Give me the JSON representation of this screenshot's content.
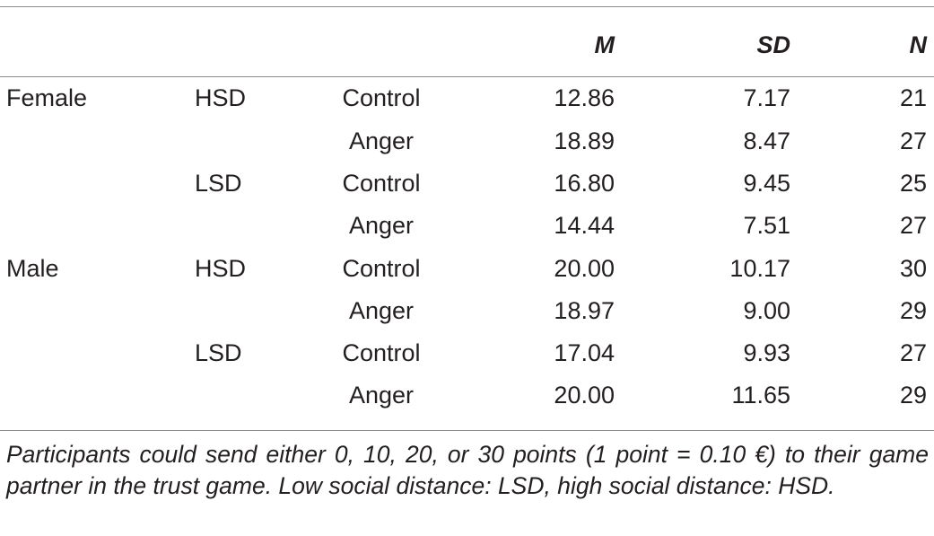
{
  "table": {
    "headers": {
      "sex": "",
      "distance": "",
      "condition": "",
      "m": "M",
      "sd": "SD",
      "n": "N"
    },
    "rows": [
      {
        "sex": "Female",
        "distance": "HSD",
        "condition": "Control",
        "m": "12.86",
        "sd": "7.17",
        "n": "21"
      },
      {
        "sex": "",
        "distance": "",
        "condition": "Anger",
        "m": "18.89",
        "sd": "8.47",
        "n": "27"
      },
      {
        "sex": "",
        "distance": "LSD",
        "condition": "Control",
        "m": "16.80",
        "sd": "9.45",
        "n": "25"
      },
      {
        "sex": "",
        "distance": "",
        "condition": "Anger",
        "m": "14.44",
        "sd": "7.51",
        "n": "27"
      },
      {
        "sex": "Male",
        "distance": "HSD",
        "condition": "Control",
        "m": "20.00",
        "sd": "10.17",
        "n": "30"
      },
      {
        "sex": "",
        "distance": "",
        "condition": "Anger",
        "m": "18.97",
        "sd": "9.00",
        "n": "29"
      },
      {
        "sex": "",
        "distance": "LSD",
        "condition": "Control",
        "m": "17.04",
        "sd": "9.93",
        "n": "27"
      },
      {
        "sex": "",
        "distance": "",
        "condition": "Anger",
        "m": "20.00",
        "sd": "11.65",
        "n": "29"
      }
    ]
  },
  "note": "Participants could send either 0, 10, 20, or 30 points (1 point = 0.10 €) to their game partner in the trust game. Low social distance: LSD, high social distance: HSD."
}
